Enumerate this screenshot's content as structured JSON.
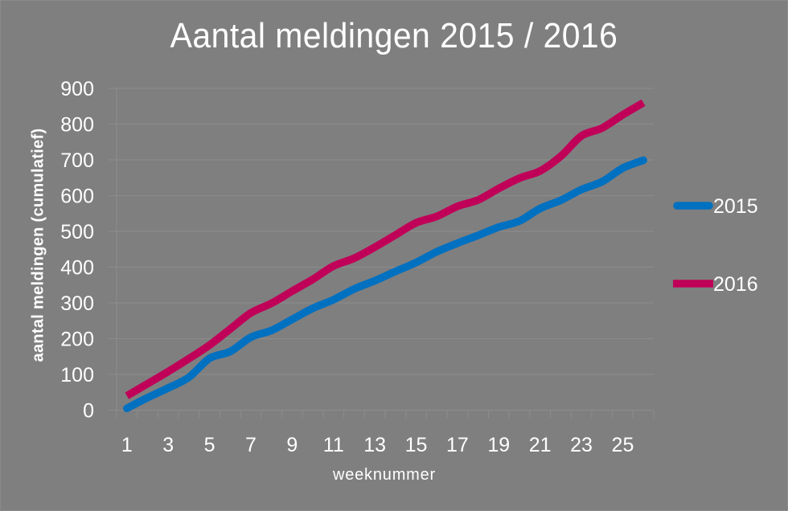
{
  "chart_data": {
    "type": "line",
    "title": "Aantal meldingen 2015 / 2016",
    "xlabel": "weeknummer",
    "ylabel": "aantal meldingen (cumulatief)",
    "x": [
      1,
      2,
      3,
      4,
      5,
      6,
      7,
      8,
      9,
      10,
      11,
      12,
      13,
      14,
      15,
      16,
      17,
      18,
      19,
      20,
      21,
      22,
      23,
      24,
      25,
      26
    ],
    "x_tick_labels": [
      "1",
      "3",
      "5",
      "7",
      "9",
      "11",
      "13",
      "15",
      "17",
      "19",
      "21",
      "23",
      "25"
    ],
    "y_ticks": [
      0,
      100,
      200,
      300,
      400,
      500,
      600,
      700,
      800,
      900
    ],
    "ylim": [
      0,
      900
    ],
    "grid": true,
    "legend_position": "right",
    "series": [
      {
        "name": "2015",
        "color": "#0070c0",
        "values": [
          5,
          35,
          62,
          92,
          145,
          164,
          204,
          223,
          254,
          285,
          309,
          339,
          362,
          388,
          413,
          443,
          467,
          489,
          512,
          529,
          564,
          587,
          617,
          639,
          677,
          699
        ]
      },
      {
        "name": "2016",
        "color": "#c00058",
        "values": [
          40,
          74,
          108,
          144,
          182,
          227,
          272,
          299,
          333,
          366,
          403,
          425,
          456,
          490,
          524,
          542,
          570,
          588,
          620,
          649,
          669,
          710,
          767,
          789,
          826,
          860
        ]
      }
    ]
  },
  "colors": {
    "background": "#7f7f7f",
    "gridline": "#8c8c8c",
    "text": "#ffffff"
  }
}
